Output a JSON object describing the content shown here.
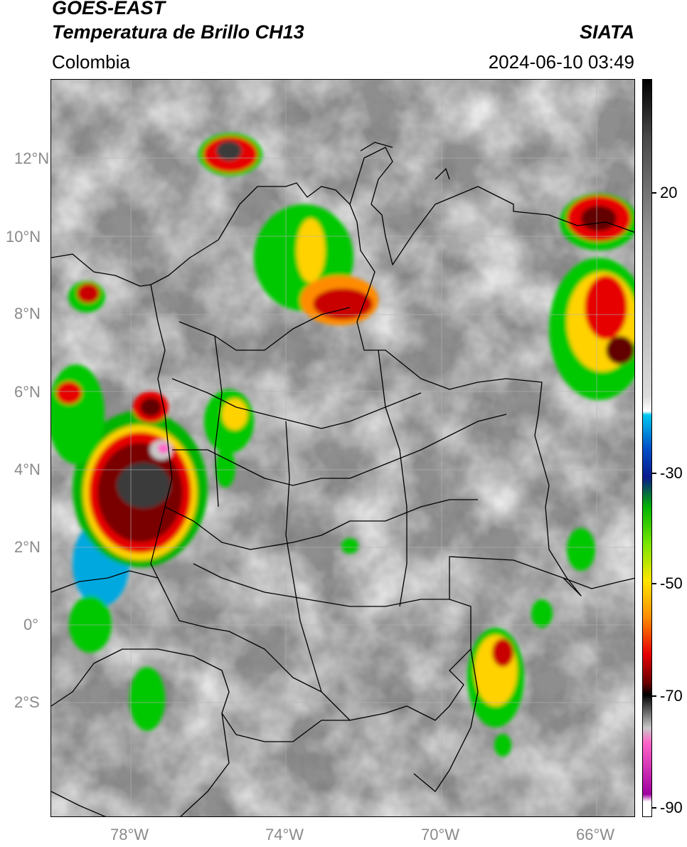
{
  "header": {
    "title_line1": "GOES-EAST",
    "title_line2": "Temperatura de Brillo CH13",
    "organization": "SIATA",
    "region": "Colombia",
    "datetime": "2024-06-10 03:49"
  },
  "map": {
    "lat_labels": [
      "12°N",
      "10°N",
      "8°N",
      "6°N",
      "4°N",
      "2°N",
      "0°",
      "2°S"
    ],
    "lon_labels": [
      "78°W",
      "74°W",
      "70°W",
      "66°W"
    ],
    "base_color": "#8e8e8e",
    "border_color": "#000000"
  },
  "colorbar": {
    "ticks": [
      "20",
      "-30",
      "-50",
      "-70",
      "-90"
    ],
    "colors": [
      "#000000",
      "#4a4a4a",
      "#9a9a9a",
      "#dcdcdc",
      "#00c8f0",
      "#0050c8",
      "#0a1a8c",
      "#00b400",
      "#78e600",
      "#ffe600",
      "#ff8c00",
      "#e60000",
      "#640000",
      "#000000",
      "#c8c8c8",
      "#ff64c8",
      "#a000a0",
      "#ffffff"
    ]
  }
}
